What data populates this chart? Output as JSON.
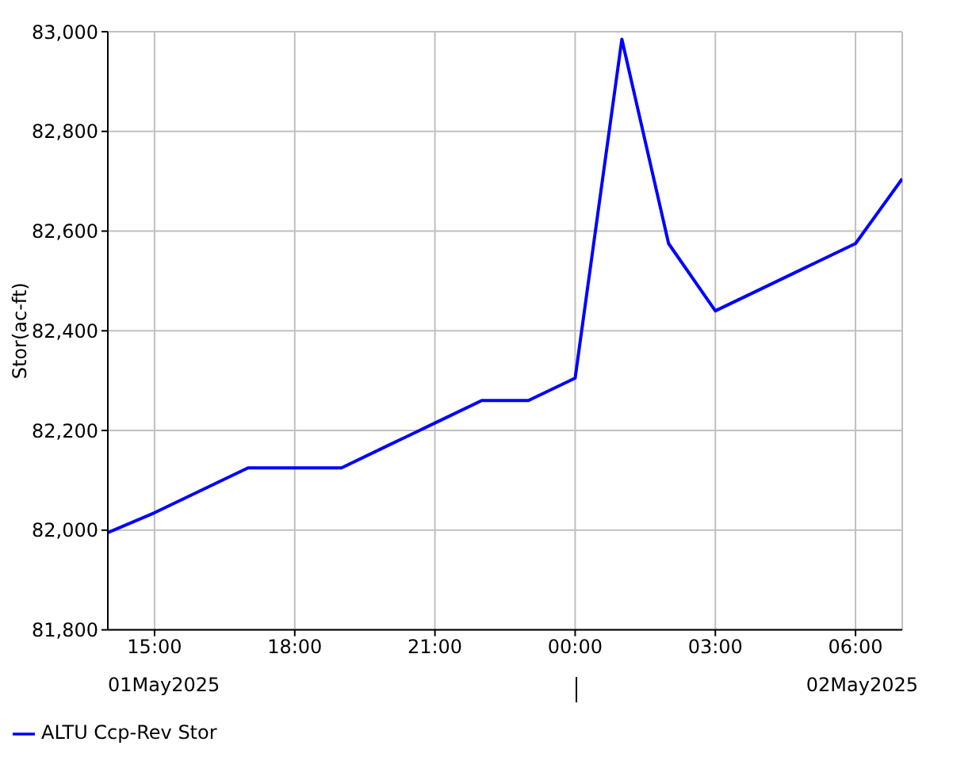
{
  "chart_data": {
    "type": "line",
    "ylabel": "Stor(ac-ft)",
    "x": [
      "2025-05-01T14:00",
      "2025-05-01T15:00",
      "2025-05-01T16:00",
      "2025-05-01T17:00",
      "2025-05-01T18:00",
      "2025-05-01T19:00",
      "2025-05-01T20:00",
      "2025-05-01T21:00",
      "2025-05-01T22:00",
      "2025-05-01T23:00",
      "2025-05-02T00:00",
      "2025-05-02T01:00",
      "2025-05-02T02:00",
      "2025-05-02T03:00",
      "2025-05-02T04:00",
      "2025-05-02T05:00",
      "2025-05-02T06:00",
      "2025-05-02T07:00"
    ],
    "series": [
      {
        "name": "ALTU Ccp-Rev Stor",
        "color": "#0000ff",
        "values": [
          81995,
          82035,
          82080,
          82125,
          82125,
          82125,
          82170,
          82215,
          82260,
          82260,
          82305,
          82985,
          82575,
          82440,
          82485,
          82530,
          82575,
          82705
        ]
      }
    ],
    "xlim": [
      "2025-05-01T14:00",
      "2025-05-02T07:00"
    ],
    "xticks": [
      {
        "value": "2025-05-01T15:00",
        "label": "15:00"
      },
      {
        "value": "2025-05-01T18:00",
        "label": "18:00"
      },
      {
        "value": "2025-05-01T21:00",
        "label": "21:00"
      },
      {
        "value": "2025-05-02T00:00",
        "label": "00:00"
      },
      {
        "value": "2025-05-02T03:00",
        "label": "03:00"
      },
      {
        "value": "2025-05-02T06:00",
        "label": "06:00"
      }
    ],
    "ylim": [
      81800,
      83000
    ],
    "yticks": [
      {
        "value": 81800,
        "label": "81,800"
      },
      {
        "value": 82000,
        "label": "82,000"
      },
      {
        "value": 82200,
        "label": "82,200"
      },
      {
        "value": 82400,
        "label": "82,400"
      },
      {
        "value": 82600,
        "label": "82,600"
      },
      {
        "value": 82800,
        "label": "82,800"
      },
      {
        "value": 83000,
        "label": "83,000"
      }
    ],
    "annotations": [
      "01May2025",
      "02May2025"
    ],
    "grid": true,
    "legend": "bottom left",
    "marker": "none",
    "line_style": "solid"
  }
}
